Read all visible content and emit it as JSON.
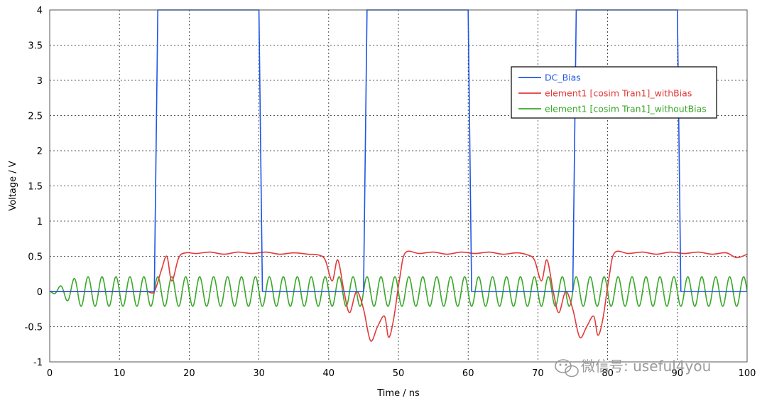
{
  "chart_data": {
    "type": "line",
    "xlabel": "Time / ns",
    "ylabel": "Voltage / V",
    "xlim": [
      0,
      100
    ],
    "ylim": [
      -1,
      4
    ],
    "x_ticks": [
      0,
      10,
      20,
      30,
      40,
      50,
      60,
      70,
      80,
      90,
      100
    ],
    "y_ticks": [
      -1,
      -0.5,
      0,
      0.5,
      1,
      1.5,
      2,
      2.5,
      3,
      3.5,
      4
    ],
    "grid": true,
    "legend_position": "top-right",
    "series": [
      {
        "name": "DC_Bias",
        "color": "#1f55e6",
        "x": [
          0,
          15.0,
          15.5,
          30.0,
          30.5,
          45.0,
          45.5,
          60.0,
          60.5,
          75.0,
          75.5,
          90.0,
          90.5,
          100
        ],
        "y": [
          0,
          0,
          4,
          4,
          0,
          0,
          4,
          4,
          0,
          0,
          4,
          4,
          0,
          0
        ]
      },
      {
        "name": "element1 [cosim Tran1]_withBias",
        "color": "#e23a3a",
        "x": [
          0,
          1,
          2,
          3,
          4,
          5,
          6,
          7,
          8,
          9,
          10,
          11,
          12,
          13,
          14,
          15,
          16,
          16.8,
          17.5,
          18.5,
          19.5,
          21,
          23,
          25,
          27,
          29,
          31,
          33,
          35,
          37,
          38.5,
          39.5,
          40.5,
          41.3,
          42.2,
          43,
          44,
          45,
          46,
          47,
          48,
          48.6,
          49.3,
          50.2,
          51,
          53,
          55,
          57,
          59,
          61,
          63,
          65,
          67,
          68.5,
          69.5,
          70.5,
          71.3,
          72.2,
          73,
          74,
          75,
          76,
          77,
          78,
          78.6,
          79.3,
          80.2,
          81,
          83,
          85,
          87,
          89,
          91,
          93,
          95,
          97,
          98.5,
          100
        ],
        "y": [
          0,
          0,
          0,
          0,
          0,
          0,
          0,
          0,
          0,
          0,
          0,
          0,
          0,
          0,
          0,
          0,
          0.3,
          0.5,
          0.15,
          0.48,
          0.55,
          0.54,
          0.56,
          0.53,
          0.56,
          0.54,
          0.56,
          0.53,
          0.55,
          0.53,
          0.52,
          0.45,
          0.15,
          0.45,
          0.0,
          -0.3,
          0.0,
          -0.25,
          -0.7,
          -0.5,
          -0.35,
          -0.65,
          -0.4,
          0.2,
          0.55,
          0.54,
          0.56,
          0.53,
          0.56,
          0.54,
          0.56,
          0.53,
          0.55,
          0.52,
          0.45,
          0.15,
          0.45,
          0.0,
          -0.3,
          0.0,
          -0.25,
          -0.65,
          -0.5,
          -0.35,
          -0.62,
          -0.4,
          0.2,
          0.55,
          0.54,
          0.56,
          0.53,
          0.56,
          0.54,
          0.56,
          0.53,
          0.55,
          0.48,
          0.53
        ]
      },
      {
        "name": "element1 [cosim Tran1]_withoutBias",
        "color": "#3aa82a",
        "period": 2.0,
        "amplitude": 0.21,
        "ramp_end": 4.0
      }
    ]
  },
  "watermark": {
    "text": "微信号: useful4you",
    "icon": "wechat-icon"
  }
}
